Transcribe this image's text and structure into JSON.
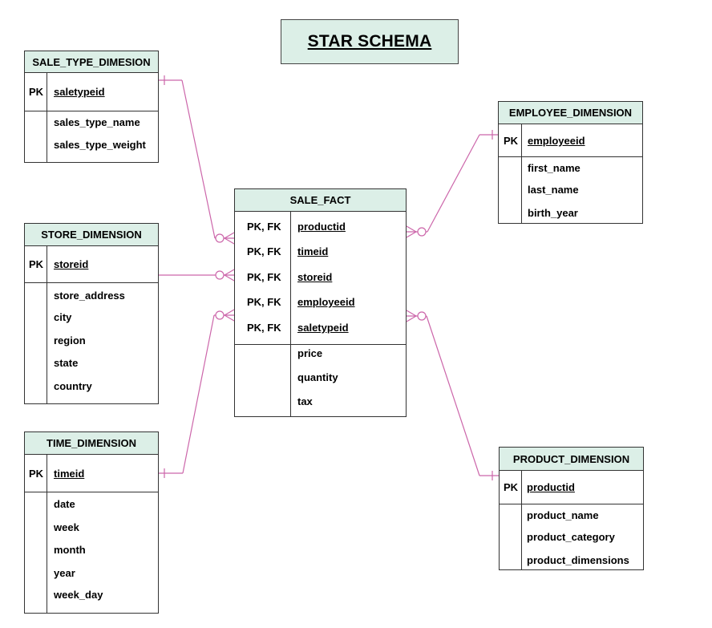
{
  "title": "STAR SCHEMA",
  "colors": {
    "header_fill": "#dcefe7",
    "connector": "#cc66aa",
    "border": "#333333"
  },
  "sale_type": {
    "name": "SALE_TYPE_DIMESION",
    "pk_label": "PK",
    "pk": "saletypeid",
    "attributes": [
      "sales_type_name",
      "sales_type_weight"
    ]
  },
  "store": {
    "name": "STORE_DIMENSION",
    "pk_label": "PK",
    "pk": "storeid",
    "attributes": [
      "store_address",
      "city",
      "region",
      "state",
      "country"
    ]
  },
  "time": {
    "name": "TIME_DIMENSION",
    "pk_label": "PK",
    "pk": "timeid",
    "attributes": [
      "date",
      "week",
      "month",
      "year",
      "week_day"
    ]
  },
  "sale_fact": {
    "name": "SALE_FACT",
    "keys": [
      {
        "label": "PK, FK",
        "field": "productid"
      },
      {
        "label": "PK, FK",
        "field": "timeid"
      },
      {
        "label": "PK, FK",
        "field": "storeid"
      },
      {
        "label": "PK, FK",
        "field": "employeeid"
      },
      {
        "label": "PK, FK",
        "field": "saletypeid"
      }
    ],
    "attributes": [
      "price",
      "quantity",
      "tax"
    ]
  },
  "employee": {
    "name": "EMPLOYEE_DIMENSION",
    "pk_label": "PK",
    "pk": "employeeid",
    "attributes": [
      "first_name",
      "last_name",
      "birth_year"
    ]
  },
  "product": {
    "name": "PRODUCT_DIMENSION",
    "pk_label": "PK",
    "pk": "productid",
    "attributes": [
      "product_name",
      "product_category",
      "product_dimensions"
    ]
  },
  "relationships": [
    {
      "from": "SALE_TYPE_DIMESION",
      "to": "SALE_FACT",
      "one_end": "one",
      "many_end": "zero-or-many"
    },
    {
      "from": "STORE_DIMENSION",
      "to": "SALE_FACT",
      "one_end": "none",
      "many_end": "zero-or-many"
    },
    {
      "from": "TIME_DIMENSION",
      "to": "SALE_FACT",
      "one_end": "one",
      "many_end": "zero-or-many"
    },
    {
      "from": "EMPLOYEE_DIMENSION",
      "to": "SALE_FACT",
      "one_end": "one",
      "many_end": "zero-or-many"
    },
    {
      "from": "PRODUCT_DIMENSION",
      "to": "SALE_FACT",
      "one_end": "one",
      "many_end": "zero-or-many"
    }
  ]
}
